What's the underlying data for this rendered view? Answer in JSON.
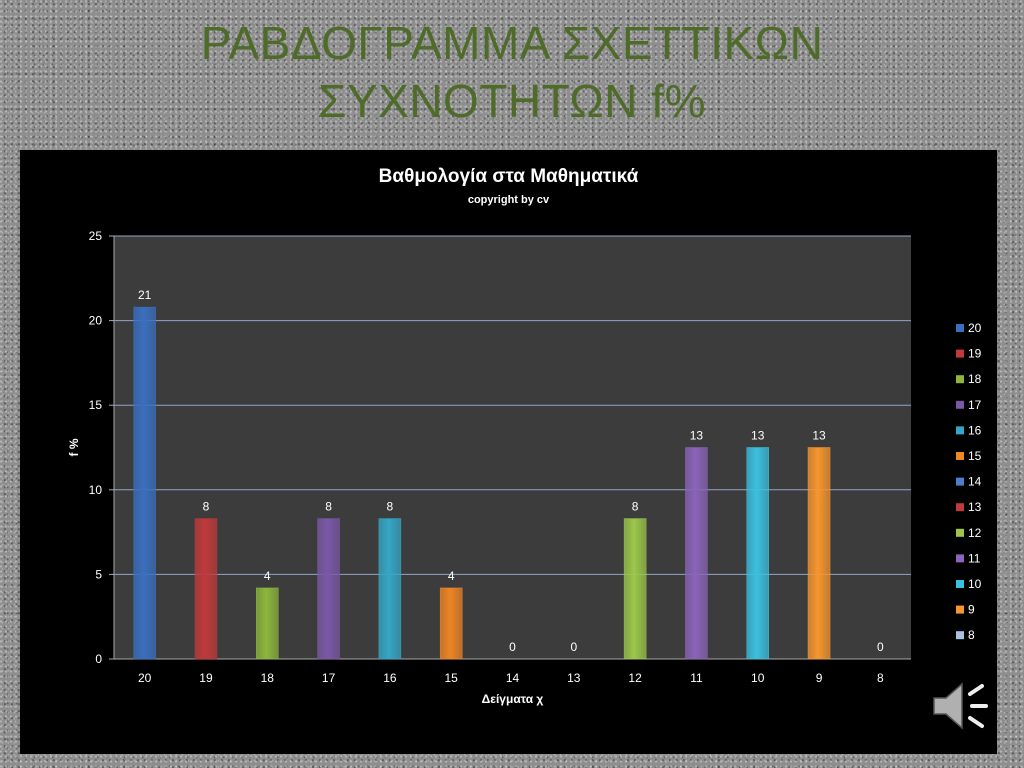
{
  "slide": {
    "title_line1": "ΡΑΒΔΟΓΡΑΜΜΑ ΣΧΕΤΤΙΚΩΝ",
    "title_line2": "ΣΥΧΝΟΤΗΤΩΝ  f%",
    "audio_icon": "speaker-icon"
  },
  "chart_data": {
    "type": "bar",
    "title": "Βαθμολογία  στα  Μαθηματικά",
    "subtitle": "copyright  by  cv",
    "xlabel": "Δείγματα  χ",
    "ylabel": "f  %",
    "ylim": [
      0,
      25
    ],
    "yticks": [
      0,
      5,
      10,
      15,
      20,
      25
    ],
    "grid": true,
    "legend_position": "right",
    "categories": [
      "20",
      "19",
      "18",
      "17",
      "16",
      "15",
      "14",
      "13",
      "12",
      "11",
      "10",
      "9",
      "8"
    ],
    "values": [
      20.8,
      8.3,
      4.2,
      8.3,
      8.3,
      4.2,
      0,
      0,
      8.3,
      12.5,
      12.5,
      12.5,
      0
    ],
    "data_labels": [
      "21",
      "8",
      "4",
      "8",
      "8",
      "4",
      "0",
      "0",
      "8",
      "13",
      "13",
      "13",
      "0"
    ],
    "colors": [
      "#3a6fbf",
      "#c0393b",
      "#8db63c",
      "#7b58a6",
      "#35a7c6",
      "#ee8526",
      "#4b7fcc",
      "#c0393b",
      "#9bc84a",
      "#8a64b8",
      "#3cc0e0",
      "#f7962f",
      "#a9c0e0"
    ]
  }
}
